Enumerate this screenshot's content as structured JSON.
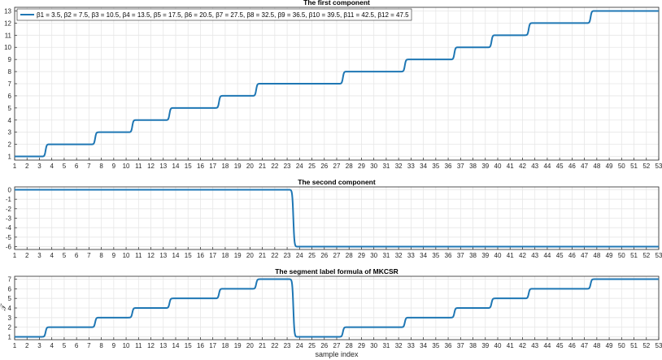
{
  "colors": {
    "line": "#1f77b4",
    "grid": "#e6e6e6",
    "axis": "#262626",
    "background": "#ffffff"
  },
  "chart_data": [
    {
      "type": "line",
      "title": "The first component",
      "xlabel": "",
      "ylabel": "",
      "xlim": [
        1,
        53
      ],
      "ylim": [
        0.7,
        13.3
      ],
      "xticks": [
        1,
        2,
        3,
        4,
        5,
        6,
        7,
        8,
        9,
        10,
        11,
        12,
        13,
        14,
        15,
        16,
        17,
        18,
        19,
        20,
        21,
        22,
        23,
        24,
        25,
        26,
        27,
        28,
        29,
        30,
        31,
        32,
        33,
        34,
        35,
        36,
        37,
        38,
        39,
        40,
        41,
        42,
        43,
        44,
        45,
        46,
        47,
        48,
        49,
        50,
        51,
        52,
        53
      ],
      "yticks": [
        1,
        2,
        3,
        4,
        5,
        6,
        7,
        8,
        9,
        10,
        11,
        12,
        13
      ],
      "grid": true,
      "legend": {
        "position": "top-left",
        "entry": "β1 = 3.5, β2 = 7.5, β3 = 10.5, β4 = 13.5, β5 = 17.5, β6 = 20.5, β7 = 27.5, β8 = 32.5, β9 = 36.5, β10 = 39.5, β11 = 42.5, β12 = 47.5"
      },
      "series": [
        {
          "style": "smoothed step",
          "x": [
            1,
            3.5,
            7.5,
            10.5,
            13.5,
            17.5,
            20.5,
            27.5,
            32.5,
            36.5,
            39.5,
            42.5,
            47.5,
            53
          ],
          "values": [
            1,
            2,
            3,
            4,
            5,
            6,
            7,
            8,
            9,
            10,
            11,
            12,
            13,
            13
          ]
        }
      ]
    },
    {
      "type": "line",
      "title": "The second component",
      "xlabel": "",
      "ylabel": "",
      "xlim": [
        1,
        53
      ],
      "ylim": [
        -6.3,
        0.3
      ],
      "xticks": [
        1,
        2,
        3,
        4,
        5,
        6,
        7,
        8,
        9,
        10,
        11,
        12,
        13,
        14,
        15,
        16,
        17,
        18,
        19,
        20,
        21,
        22,
        23,
        24,
        25,
        26,
        27,
        28,
        29,
        30,
        31,
        32,
        33,
        34,
        35,
        36,
        37,
        38,
        39,
        40,
        41,
        42,
        43,
        44,
        45,
        46,
        47,
        48,
        49,
        50,
        51,
        52,
        53
      ],
      "yticks": [
        0,
        -1,
        -2,
        -3,
        -4,
        -5,
        -6
      ],
      "grid": true,
      "series": [
        {
          "style": "smoothed step",
          "x": [
            1,
            23.5,
            53
          ],
          "values": [
            0,
            -6,
            -6
          ]
        }
      ]
    },
    {
      "type": "line",
      "title": "The segment label formula of MKCSR",
      "xlabel": "sample index",
      "ylabel": "𝒯",
      "xlim": [
        1,
        53
      ],
      "ylim": [
        0.7,
        7.3
      ],
      "xticks": [
        1,
        2,
        3,
        4,
        5,
        6,
        7,
        8,
        9,
        10,
        11,
        12,
        13,
        14,
        15,
        16,
        17,
        18,
        19,
        20,
        21,
        22,
        23,
        24,
        25,
        26,
        27,
        28,
        29,
        30,
        31,
        32,
        33,
        34,
        35,
        36,
        37,
        38,
        39,
        40,
        41,
        42,
        43,
        44,
        45,
        46,
        47,
        48,
        49,
        50,
        51,
        52,
        53
      ],
      "yticks": [
        1,
        2,
        3,
        4,
        5,
        6,
        7
      ],
      "grid": true,
      "series": [
        {
          "style": "smoothed step",
          "x": [
            1,
            3.5,
            7.5,
            10.5,
            13.5,
            17.5,
            20.5,
            23.5,
            27.5,
            32.5,
            36.5,
            39.5,
            42.5,
            47.5,
            53
          ],
          "values": [
            1,
            2,
            3,
            4,
            5,
            6,
            7,
            1,
            2,
            3,
            4,
            5,
            6,
            7,
            7
          ]
        }
      ]
    }
  ]
}
